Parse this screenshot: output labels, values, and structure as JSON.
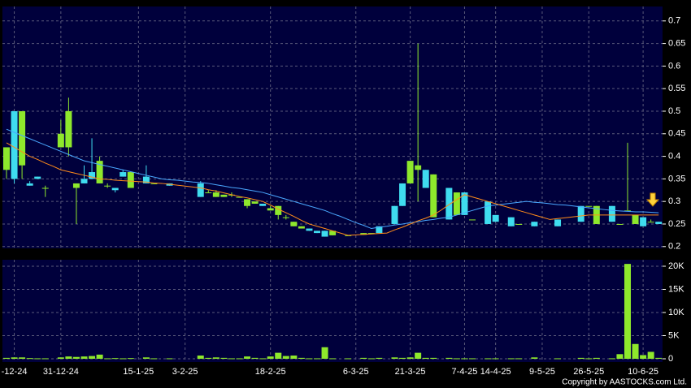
{
  "chart_data": [
    {
      "type": "candlestick",
      "categories": [
        null,
        "-12-24",
        null,
        null,
        null,
        null,
        null,
        "31-12-24",
        null,
        null,
        null,
        null,
        null,
        null,
        null,
        null,
        null,
        "15-1-25",
        null,
        null,
        null,
        null,
        null,
        "3-2-25",
        null,
        null,
        null,
        null,
        null,
        null,
        null,
        null,
        null,
        null,
        "18-2-25",
        null,
        null,
        null,
        null,
        null,
        null,
        null,
        null,
        null,
        null,
        "6-3-25",
        null,
        null,
        null,
        null,
        null,
        null,
        "21-3-25",
        null,
        null,
        null,
        null,
        null,
        null,
        "7-4-25",
        null,
        null,
        null,
        "14-4-25",
        null,
        null,
        null,
        null,
        null,
        "9-5-25",
        null,
        null,
        null,
        null,
        null,
        "26-5-25",
        null,
        null,
        null,
        null,
        null,
        null,
        "10-6-25",
        null,
        null
      ],
      "open": [
        0.37,
        0.5,
        0.38,
        0.34,
        0.355,
        0.33,
        null,
        0.42,
        0.42,
        0.33,
        0.35,
        0.365,
        0.34,
        0.335,
        0.33,
        0.365,
        0.33,
        null,
        0.355,
        0.34,
        null,
        0.34,
        null,
        null,
        null,
        0.34,
        0.32,
        0.31,
        0.31,
        0.315,
        0.31,
        0.29,
        0.295,
        0.295,
        0.28,
        0.27,
        0.265,
        0.245,
        0.24,
        0.24,
        0.235,
        0.235,
        0.225,
        null,
        0.225,
        null,
        0.226,
        0.23,
        0.245,
        null,
        0.29,
        0.34,
        0.34,
        0.37,
        0.37,
        0.265,
        null,
        0.33,
        0.27,
        0.32,
        0.26,
        null,
        0.3,
        0.27,
        null,
        0.265,
        0.25,
        null,
        0.255,
        null,
        null,
        0.26,
        null,
        null,
        0.29,
        0.29,
        0.25,
        null,
        0.29,
        0.25,
        0.28,
        0.25,
        0.265,
        0.255,
        0.255
      ],
      "high": [
        0.42,
        0.5,
        0.5,
        0.345,
        0.355,
        0.335,
        null,
        0.48,
        0.53,
        0.34,
        0.38,
        0.44,
        0.4,
        0.34,
        0.33,
        0.37,
        0.365,
        null,
        0.38,
        0.34,
        null,
        0.34,
        null,
        null,
        null,
        0.345,
        0.325,
        0.325,
        0.315,
        0.32,
        0.31,
        0.305,
        0.3,
        0.295,
        0.29,
        0.29,
        0.27,
        0.255,
        0.245,
        0.24,
        0.235,
        0.235,
        0.235,
        null,
        0.225,
        null,
        0.23,
        0.23,
        0.245,
        null,
        0.29,
        0.34,
        0.39,
        0.65,
        0.37,
        0.36,
        null,
        0.33,
        0.32,
        0.32,
        0.26,
        null,
        0.3,
        0.27,
        null,
        0.265,
        0.25,
        null,
        0.255,
        null,
        null,
        0.26,
        null,
        null,
        0.29,
        0.29,
        0.29,
        null,
        0.29,
        0.25,
        0.43,
        0.27,
        0.265,
        0.26,
        0.255
      ],
      "low": [
        0.35,
        0.34,
        0.35,
        0.335,
        0.35,
        0.31,
        null,
        0.42,
        0.4,
        0.25,
        0.34,
        0.35,
        0.34,
        0.33,
        0.32,
        0.355,
        0.33,
        null,
        0.34,
        0.34,
        null,
        0.335,
        null,
        null,
        null,
        0.31,
        0.32,
        0.31,
        0.31,
        0.31,
        0.31,
        0.285,
        0.295,
        0.29,
        0.28,
        0.26,
        0.26,
        0.245,
        0.24,
        0.235,
        0.23,
        0.222,
        0.225,
        null,
        0.225,
        null,
        0.226,
        0.23,
        0.23,
        null,
        0.25,
        0.29,
        0.34,
        0.3,
        0.33,
        0.265,
        null,
        0.26,
        0.27,
        0.27,
        0.26,
        null,
        0.25,
        0.255,
        null,
        0.245,
        0.25,
        null,
        0.245,
        null,
        null,
        0.245,
        null,
        null,
        0.255,
        0.29,
        0.25,
        null,
        0.255,
        0.25,
        0.28,
        0.25,
        0.245,
        0.255,
        0.25
      ],
      "close": [
        0.42,
        0.35,
        0.5,
        0.335,
        0.35,
        0.33,
        null,
        0.45,
        0.5,
        0.34,
        0.34,
        0.35,
        0.39,
        0.335,
        0.325,
        0.355,
        0.365,
        null,
        0.34,
        0.34,
        null,
        0.335,
        null,
        null,
        null,
        0.31,
        0.32,
        0.32,
        0.315,
        0.315,
        0.31,
        0.305,
        0.3,
        0.29,
        0.285,
        0.29,
        0.265,
        0.255,
        0.245,
        0.235,
        0.23,
        0.222,
        0.235,
        null,
        0.225,
        null,
        0.23,
        0.23,
        0.23,
        null,
        0.25,
        0.29,
        0.39,
        0.38,
        0.33,
        0.36,
        null,
        0.26,
        0.32,
        0.27,
        0.26,
        null,
        0.25,
        0.255,
        null,
        0.245,
        0.25,
        null,
        0.245,
        null,
        null,
        0.245,
        null,
        null,
        0.255,
        0.29,
        0.29,
        null,
        0.255,
        0.25,
        0.28,
        0.27,
        0.245,
        0.255,
        0.25
      ],
      "up_color": "#8ee82c",
      "down_color": "#3fdcef",
      "series": [
        {
          "color": "#4aa8ff",
          "values": [
            0.46,
            0.453,
            0.446,
            0.439,
            0.432,
            0.425,
            0.418,
            0.411,
            0.404,
            0.397,
            0.39,
            0.386,
            0.382,
            0.378,
            0.374,
            0.37,
            0.366,
            0.362,
            0.358,
            0.354,
            0.35,
            0.348,
            0.347,
            0.345,
            0.343,
            0.342,
            0.34,
            0.337,
            0.334,
            0.331,
            0.329,
            0.326,
            0.323,
            0.32,
            0.315,
            0.31,
            0.305,
            0.3,
            0.295,
            0.29,
            0.285,
            0.28,
            0.273,
            0.267,
            0.26,
            0.253,
            0.247,
            0.24,
            0.243,
            0.245,
            0.248,
            0.25,
            0.253,
            0.255,
            0.258,
            0.26,
            0.263,
            0.265,
            0.27,
            0.275,
            0.28,
            0.285,
            0.29,
            0.292,
            0.294,
            0.296,
            0.298,
            0.3,
            0.298,
            0.297,
            0.295,
            0.293,
            0.292,
            0.29,
            0.288,
            0.286,
            0.284,
            0.282,
            0.28,
            0.279,
            0.278,
            0.277,
            0.277,
            0.276,
            0.275
          ]
        },
        {
          "color": "#ff8c1a",
          "values": [
            0.43,
            0.42,
            0.41,
            0.4,
            0.393,
            0.385,
            0.378,
            0.37,
            0.366,
            0.362,
            0.358,
            0.354,
            0.35,
            0.349,
            0.347,
            0.346,
            0.345,
            0.344,
            0.343,
            0.341,
            0.34,
            0.338,
            0.336,
            0.334,
            0.332,
            0.33,
            0.326,
            0.323,
            0.319,
            0.315,
            0.311,
            0.308,
            0.304,
            0.3,
            0.292,
            0.283,
            0.275,
            0.267,
            0.258,
            0.25,
            0.245,
            0.24,
            0.235,
            0.23,
            0.225,
            0.226,
            0.227,
            0.228,
            0.229,
            0.23,
            0.237,
            0.243,
            0.25,
            0.257,
            0.263,
            0.27,
            0.281,
            0.293,
            0.304,
            0.315,
            0.31,
            0.305,
            0.3,
            0.295,
            0.29,
            0.285,
            0.28,
            0.275,
            0.27,
            0.265,
            0.26,
            0.262,
            0.264,
            0.266,
            0.268,
            0.27,
            0.27,
            0.27,
            0.27,
            0.27,
            0.27,
            0.27,
            0.27,
            0.27,
            0.27
          ]
        }
      ],
      "ylim": [
        0.196,
        0.732
      ],
      "yticks": [
        0.2,
        0.25,
        0.3,
        0.35,
        0.4,
        0.45,
        0.5,
        0.55,
        0.6,
        0.65,
        0.7
      ],
      "grid": true
    },
    {
      "type": "bar",
      "values": [
        200,
        300,
        300,
        150,
        100,
        100,
        null,
        300,
        500,
        400,
        500,
        600,
        900,
        100,
        150,
        100,
        150,
        null,
        300,
        100,
        null,
        100,
        null,
        null,
        null,
        700,
        200,
        300,
        200,
        100,
        100,
        500,
        200,
        100,
        500,
        1300,
        600,
        700,
        200,
        100,
        100,
        2500,
        100,
        null,
        100,
        null,
        200,
        100,
        200,
        null,
        300,
        200,
        300,
        1300,
        200,
        200,
        null,
        200,
        100,
        100,
        100,
        null,
        100,
        100,
        null,
        100,
        100,
        null,
        300,
        null,
        null,
        100,
        null,
        null,
        200,
        100,
        200,
        null,
        100,
        1000,
        20500,
        3200,
        800,
        1500,
        200
      ],
      "color": "#8ee82c",
      "ylim": [
        -700,
        21400
      ],
      "yticks": [
        0,
        {
          "value": 5000,
          "label": "5K"
        },
        {
          "value": 10000,
          "label": "10K"
        },
        {
          "value": 15000,
          "label": "15K"
        },
        {
          "value": 20000,
          "label": "20K"
        }
      ],
      "grid": true
    }
  ],
  "copyright": "Copyright by AASTOCKS.com Ltd."
}
